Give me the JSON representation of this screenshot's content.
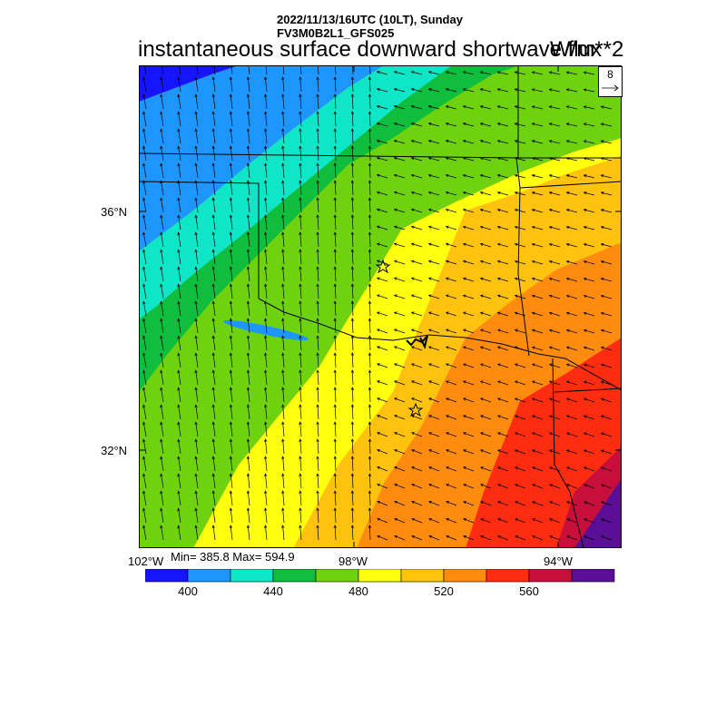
{
  "header": {
    "line1": "2022/11/13/16UTC (10LT), Sunday",
    "line2": "FV3M0B2L1_GFS025"
  },
  "title": "instantaneous surface downward shortwave flux",
  "units": "W/m**2",
  "reference_vector": {
    "label": "8",
    "icon": "arrow-right-icon"
  },
  "axes": {
    "lat_labels": [
      "36°N",
      "32°N"
    ],
    "lon_labels": [
      "102°W",
      "98°W",
      "94°W"
    ]
  },
  "stats": {
    "text": "Min= 385.8 Max= 594.9",
    "min": 385.8,
    "max": 594.9
  },
  "colorbar": {
    "colors": [
      "#1515ff",
      "#1e96ff",
      "#0fe6c8",
      "#0fbe3c",
      "#6ed20f",
      "#ffff0f",
      "#ffc30f",
      "#ff8c0f",
      "#ff2d0f",
      "#c80f3c",
      "#5a0f96"
    ],
    "boundaries": [
      380,
      400,
      420,
      440,
      460,
      480,
      500,
      520,
      540,
      560,
      580,
      600
    ],
    "labels": [
      "400",
      "440",
      "480",
      "520",
      "560"
    ],
    "label_values": [
      400,
      440,
      480,
      520,
      560
    ]
  },
  "map": {
    "features": [
      "state-boundaries",
      "red-river",
      "lake-meredith",
      "station-star-oklahoma-city",
      "station-star-dallas-fort-worth"
    ],
    "wind_vectors": "surface wind barbs pointing north-northwest over western half, west over eastern half"
  }
}
